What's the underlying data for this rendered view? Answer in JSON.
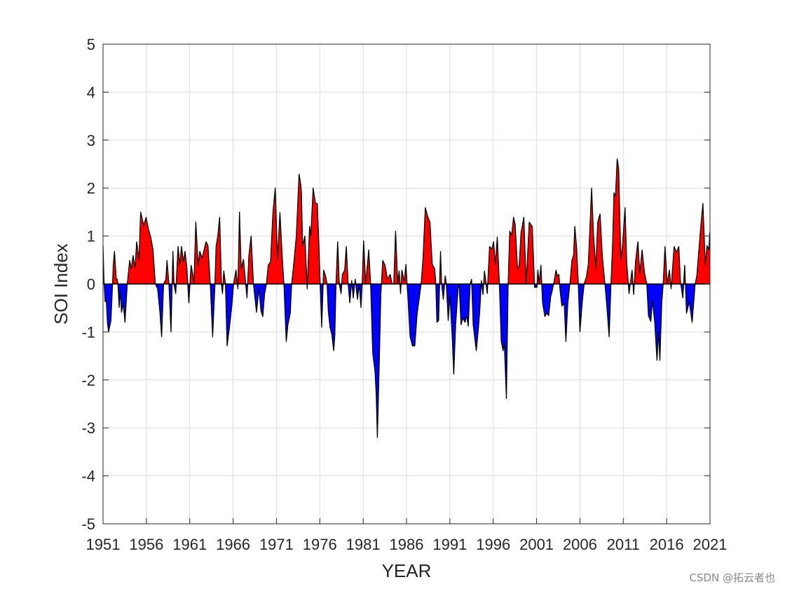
{
  "chart_data": {
    "type": "area",
    "title": "",
    "xlabel": "YEAR",
    "ylabel": "SOI Index",
    "xlim": [
      1951,
      2021
    ],
    "ylim": [
      -5,
      5
    ],
    "xticks": [
      1951,
      1956,
      1961,
      1966,
      1971,
      1976,
      1981,
      1986,
      1991,
      1996,
      2001,
      2006,
      2011,
      2016,
      2021
    ],
    "yticks": [
      -5,
      -4,
      -3,
      -2,
      -1,
      0,
      1,
      2,
      3,
      4,
      5
    ],
    "grid": true,
    "colors": {
      "positive": "#ff0000",
      "negative": "#0000ff",
      "line": "#000000"
    },
    "points": [
      [
        1951.0,
        0.8
      ],
      [
        1951.1,
        0.12
      ],
      [
        1951.24,
        -0.37
      ],
      [
        1951.37,
        -0.32
      ],
      [
        1951.51,
        -0.8
      ],
      [
        1951.64,
        -1.0
      ],
      [
        1951.91,
        -0.76
      ],
      [
        1952.1,
        0
      ],
      [
        1952.18,
        0.39
      ],
      [
        1952.32,
        0.68
      ],
      [
        1952.53,
        0.1
      ],
      [
        1952.64,
        0.1
      ],
      [
        1952.72,
        0
      ],
      [
        1952.86,
        -0.49
      ],
      [
        1952.99,
        -0.12
      ],
      [
        1953.13,
        -0.59
      ],
      [
        1953.34,
        -0.41
      ],
      [
        1953.53,
        -0.8
      ],
      [
        1953.8,
        0
      ],
      [
        1954.07,
        0.49
      ],
      [
        1954.26,
        0.32
      ],
      [
        1954.47,
        0.59
      ],
      [
        1954.69,
        0.34
      ],
      [
        1954.88,
        0.88
      ],
      [
        1955.15,
        0.51
      ],
      [
        1955.34,
        1.5
      ],
      [
        1955.69,
        1.22
      ],
      [
        1955.96,
        1.39
      ],
      [
        1956.23,
        1.15
      ],
      [
        1956.5,
        0.98
      ],
      [
        1956.76,
        0.71
      ],
      [
        1957.03,
        0
      ],
      [
        1957.3,
        -0.1
      ],
      [
        1957.57,
        -0.61
      ],
      [
        1957.76,
        -1.1
      ],
      [
        1957.98,
        0
      ],
      [
        1958.25,
        0.1
      ],
      [
        1958.38,
        0.49
      ],
      [
        1958.6,
        0
      ],
      [
        1958.84,
        -1.0
      ],
      [
        1959.06,
        0.68
      ],
      [
        1959.19,
        0
      ],
      [
        1959.38,
        -0.2
      ],
      [
        1959.65,
        0.78
      ],
      [
        1959.86,
        0.41
      ],
      [
        1960.05,
        0.78
      ],
      [
        1960.27,
        0.46
      ],
      [
        1960.46,
        0.68
      ],
      [
        1960.67,
        0.34
      ],
      [
        1960.89,
        -0.39
      ],
      [
        1961.16,
        0.39
      ],
      [
        1961.35,
        0.2
      ],
      [
        1961.48,
        0
      ],
      [
        1961.7,
        1.29
      ],
      [
        1961.97,
        0.39
      ],
      [
        1962.16,
        0.68
      ],
      [
        1962.42,
        0.54
      ],
      [
        1962.61,
        0.68
      ],
      [
        1962.88,
        0.88
      ],
      [
        1963.1,
        0.8
      ],
      [
        1963.37,
        0
      ],
      [
        1963.64,
        -1.1
      ],
      [
        1963.91,
        0
      ],
      [
        1964.04,
        0.78
      ],
      [
        1964.23,
        1.0
      ],
      [
        1964.45,
        1.39
      ],
      [
        1964.66,
        0
      ],
      [
        1964.77,
        -0.2
      ],
      [
        1964.93,
        0.27
      ],
      [
        1965.12,
        0
      ],
      [
        1965.31,
        -1.29
      ],
      [
        1965.58,
        -0.9
      ],
      [
        1965.85,
        -0.46
      ],
      [
        1966.06,
        0
      ],
      [
        1966.33,
        0.29
      ],
      [
        1966.55,
        -0.1
      ],
      [
        1966.74,
        1.5
      ],
      [
        1966.93,
        0.32
      ],
      [
        1967.2,
        0.51
      ],
      [
        1967.46,
        0
      ],
      [
        1967.6,
        -0.29
      ],
      [
        1967.82,
        0.59
      ],
      [
        1968.08,
        1.0
      ],
      [
        1968.35,
        0
      ],
      [
        1968.7,
        -0.59
      ],
      [
        1968.97,
        -0.1
      ],
      [
        1969.22,
        -0.56
      ],
      [
        1969.43,
        -0.68
      ],
      [
        1969.62,
        -0.22
      ],
      [
        1969.84,
        0
      ],
      [
        1970.05,
        0.39
      ],
      [
        1970.32,
        0.46
      ],
      [
        1970.59,
        1.49
      ],
      [
        1970.86,
        2.0
      ],
      [
        1971.13,
        0.51
      ],
      [
        1971.4,
        1.49
      ],
      [
        1971.72,
        0.41
      ],
      [
        1971.86,
        0
      ],
      [
        1972.13,
        -1.2
      ],
      [
        1972.32,
        -0.85
      ],
      [
        1972.59,
        -0.61
      ],
      [
        1972.75,
        0
      ],
      [
        1973.02,
        0.46
      ],
      [
        1973.29,
        1.0
      ],
      [
        1973.61,
        2.29
      ],
      [
        1973.83,
        2.05
      ],
      [
        1973.88,
        1.88
      ],
      [
        1974.01,
        0.8
      ],
      [
        1974.28,
        1.0
      ],
      [
        1974.55,
        -0.1
      ],
      [
        1974.82,
        1.2
      ],
      [
        1974.96,
        1.0
      ],
      [
        1975.23,
        2.0
      ],
      [
        1975.5,
        1.68
      ],
      [
        1975.71,
        1.68
      ],
      [
        1975.9,
        0.8
      ],
      [
        1976.04,
        0
      ],
      [
        1976.22,
        -0.9
      ],
      [
        1976.44,
        0.29
      ],
      [
        1976.66,
        0.17
      ],
      [
        1976.84,
        0
      ],
      [
        1976.98,
        -0.56
      ],
      [
        1977.17,
        -0.9
      ],
      [
        1977.38,
        -1.05
      ],
      [
        1977.6,
        -1.39
      ],
      [
        1977.73,
        -1.07
      ],
      [
        1977.87,
        0
      ],
      [
        1978.06,
        0.88
      ],
      [
        1978.25,
        0
      ],
      [
        1978.46,
        -0.2
      ],
      [
        1978.6,
        0.2
      ],
      [
        1978.87,
        0.29
      ],
      [
        1979.06,
        0.78
      ],
      [
        1979.27,
        0
      ],
      [
        1979.46,
        -0.39
      ],
      [
        1979.68,
        0.07
      ],
      [
        1979.86,
        -0.29
      ],
      [
        1980.08,
        0.1
      ],
      [
        1980.35,
        -0.32
      ],
      [
        1980.54,
        0
      ],
      [
        1980.75,
        -0.49
      ],
      [
        1980.89,
        0
      ],
      [
        1981.05,
        0.9
      ],
      [
        1981.29,
        0
      ],
      [
        1981.64,
        0.71
      ],
      [
        1981.86,
        0
      ],
      [
        1982.1,
        -1.44
      ],
      [
        1982.37,
        -1.83
      ],
      [
        1982.51,
        -2.32
      ],
      [
        1982.64,
        -3.2
      ],
      [
        1982.83,
        -1.83
      ],
      [
        1983.04,
        -0.2
      ],
      [
        1983.26,
        0.49
      ],
      [
        1983.53,
        0.39
      ],
      [
        1983.8,
        0.1
      ],
      [
        1984.12,
        0.2
      ],
      [
        1984.34,
        0
      ],
      [
        1984.53,
        0
      ],
      [
        1984.74,
        1.1
      ],
      [
        1984.99,
        0
      ],
      [
        1985.15,
        0.27
      ],
      [
        1985.31,
        -0.2
      ],
      [
        1985.47,
        0.29
      ],
      [
        1985.74,
        0.05
      ],
      [
        1985.93,
        0.41
      ],
      [
        1986.14,
        -0.2
      ],
      [
        1986.41,
        -1.1
      ],
      [
        1986.68,
        -1.29
      ],
      [
        1986.95,
        -1.29
      ],
      [
        1987.22,
        -0.63
      ],
      [
        1987.49,
        -0.27
      ],
      [
        1987.68,
        0
      ],
      [
        1987.9,
        0.51
      ],
      [
        1988.17,
        1.59
      ],
      [
        1988.44,
        1.41
      ],
      [
        1988.7,
        1.29
      ],
      [
        1988.97,
        0.41
      ],
      [
        1989.24,
        0.32
      ],
      [
        1989.38,
        0
      ],
      [
        1989.51,
        -0.8
      ],
      [
        1989.7,
        -0.76
      ],
      [
        1989.92,
        0.68
      ],
      [
        1990.05,
        0
      ],
      [
        1990.24,
        -0.32
      ],
      [
        1990.46,
        0.17
      ],
      [
        1990.59,
        0
      ],
      [
        1990.81,
        -0.76
      ],
      [
        1991.0,
        -0.22
      ],
      [
        1991.27,
        -1.1
      ],
      [
        1991.45,
        -1.88
      ],
      [
        1991.67,
        -0.85
      ],
      [
        1991.94,
        -0.1
      ],
      [
        1992.07,
        0
      ],
      [
        1992.29,
        -0.85
      ],
      [
        1992.48,
        -0.71
      ],
      [
        1992.75,
        -0.8
      ],
      [
        1992.94,
        -0.66
      ],
      [
        1993.12,
        -0.88
      ],
      [
        1993.34,
        0
      ],
      [
        1993.5,
        0.1
      ],
      [
        1993.69,
        -0.85
      ],
      [
        1994.04,
        -1.39
      ],
      [
        1994.28,
        -0.95
      ],
      [
        1994.45,
        -0.56
      ],
      [
        1994.63,
        0.07
      ],
      [
        1994.82,
        -0.22
      ],
      [
        1994.99,
        0.27
      ],
      [
        1995.31,
        -0.2
      ],
      [
        1995.58,
        0.78
      ],
      [
        1995.85,
        0.73
      ],
      [
        1996.04,
        0.88
      ],
      [
        1996.25,
        0.41
      ],
      [
        1996.47,
        0.98
      ],
      [
        1996.71,
        0
      ],
      [
        1996.93,
        -1.2
      ],
      [
        1997.14,
        -1.39
      ],
      [
        1997.28,
        -1.22
      ],
      [
        1997.52,
        -2.39
      ],
      [
        1997.72,
        0
      ],
      [
        1997.91,
        1.1
      ],
      [
        1998.13,
        1.02
      ],
      [
        1998.34,
        1.39
      ],
      [
        1998.53,
        1.24
      ],
      [
        1998.8,
        0.32
      ],
      [
        1998.99,
        0.37
      ],
      [
        1999.21,
        1.07
      ],
      [
        1999.53,
        1.39
      ],
      [
        1999.8,
        0
      ],
      [
        2000.15,
        1.29
      ],
      [
        2000.5,
        1.2
      ],
      [
        2000.77,
        -0.07
      ],
      [
        2001.04,
        -0.07
      ],
      [
        2001.15,
        0.29
      ],
      [
        2001.31,
        0.02
      ],
      [
        2001.5,
        0.39
      ],
      [
        2001.69,
        -0.39
      ],
      [
        2001.96,
        -0.68
      ],
      [
        2002.17,
        -0.61
      ],
      [
        2002.39,
        -0.66
      ],
      [
        2002.63,
        -0.27
      ],
      [
        2002.85,
        -0.1
      ],
      [
        2003.03,
        0.07
      ],
      [
        2003.25,
        0.29
      ],
      [
        2003.38,
        0.17
      ],
      [
        2003.57,
        0.2
      ],
      [
        2003.73,
        -0.17
      ],
      [
        2003.92,
        -0.46
      ],
      [
        2004.19,
        -0.41
      ],
      [
        2004.38,
        -1.2
      ],
      [
        2004.6,
        -0.41
      ],
      [
        2004.87,
        0.05
      ],
      [
        2005.08,
        0.49
      ],
      [
        2005.27,
        0.61
      ],
      [
        2005.41,
        1.2
      ],
      [
        2005.62,
        0.76
      ],
      [
        2005.81,
        0
      ],
      [
        2006.0,
        -1.0
      ],
      [
        2006.27,
        -0.37
      ],
      [
        2006.48,
        0
      ],
      [
        2006.75,
        0.15
      ],
      [
        2006.97,
        0.41
      ],
      [
        2007.35,
        2.0
      ],
      [
        2007.56,
        1.05
      ],
      [
        2007.83,
        0.32
      ],
      [
        2008.05,
        1.29
      ],
      [
        2008.32,
        1.46
      ],
      [
        2008.59,
        0.56
      ],
      [
        2008.86,
        0.05
      ],
      [
        2009.1,
        -0.46
      ],
      [
        2009.37,
        -1.1
      ],
      [
        2009.58,
        0
      ],
      [
        2009.77,
        0.85
      ],
      [
        2009.93,
        1.9
      ],
      [
        2010.1,
        1.83
      ],
      [
        2010.29,
        2.61
      ],
      [
        2010.47,
        2.41
      ],
      [
        2010.72,
        0.51
      ],
      [
        2010.93,
        0.85
      ],
      [
        2011.2,
        1.59
      ],
      [
        2011.39,
        0.46
      ],
      [
        2011.66,
        -0.2
      ],
      [
        2012.01,
        0.29
      ],
      [
        2012.2,
        -0.22
      ],
      [
        2012.41,
        0.46
      ],
      [
        2012.68,
        0.88
      ],
      [
        2012.9,
        0.22
      ],
      [
        2013.17,
        0.71
      ],
      [
        2013.44,
        0.24
      ],
      [
        2013.71,
        0
      ],
      [
        2013.9,
        -0.66
      ],
      [
        2014.17,
        -0.78
      ],
      [
        2014.36,
        -0.34
      ],
      [
        2014.62,
        -0.8
      ],
      [
        2014.89,
        -1.59
      ],
      [
        2015.06,
        -1.0
      ],
      [
        2015.22,
        -1.59
      ],
      [
        2015.43,
        -0.41
      ],
      [
        2015.6,
        0
      ],
      [
        2015.81,
        0.78
      ],
      [
        2016.05,
        0
      ],
      [
        2016.32,
        0.29
      ],
      [
        2016.51,
        -0.1
      ],
      [
        2016.86,
        0.78
      ],
      [
        2017.13,
        0.66
      ],
      [
        2017.4,
        0.78
      ],
      [
        2017.59,
        0.05
      ],
      [
        2017.86,
        -0.29
      ],
      [
        2018.08,
        0.39
      ],
      [
        2018.29,
        -0.61
      ],
      [
        2018.61,
        -0.37
      ],
      [
        2018.94,
        -0.8
      ],
      [
        2019.29,
        0
      ],
      [
        2019.48,
        0.17
      ],
      [
        2019.75,
        0.78
      ],
      [
        2019.96,
        1.24
      ],
      [
        2020.18,
        1.68
      ],
      [
        2020.45,
        0.41
      ],
      [
        2020.66,
        0.8
      ],
      [
        2020.88,
        0.71
      ],
      [
        2020.97,
        1.07
      ],
      [
        2021.0,
        1.05
      ]
    ]
  },
  "watermark": "CSDN @拓云者也"
}
